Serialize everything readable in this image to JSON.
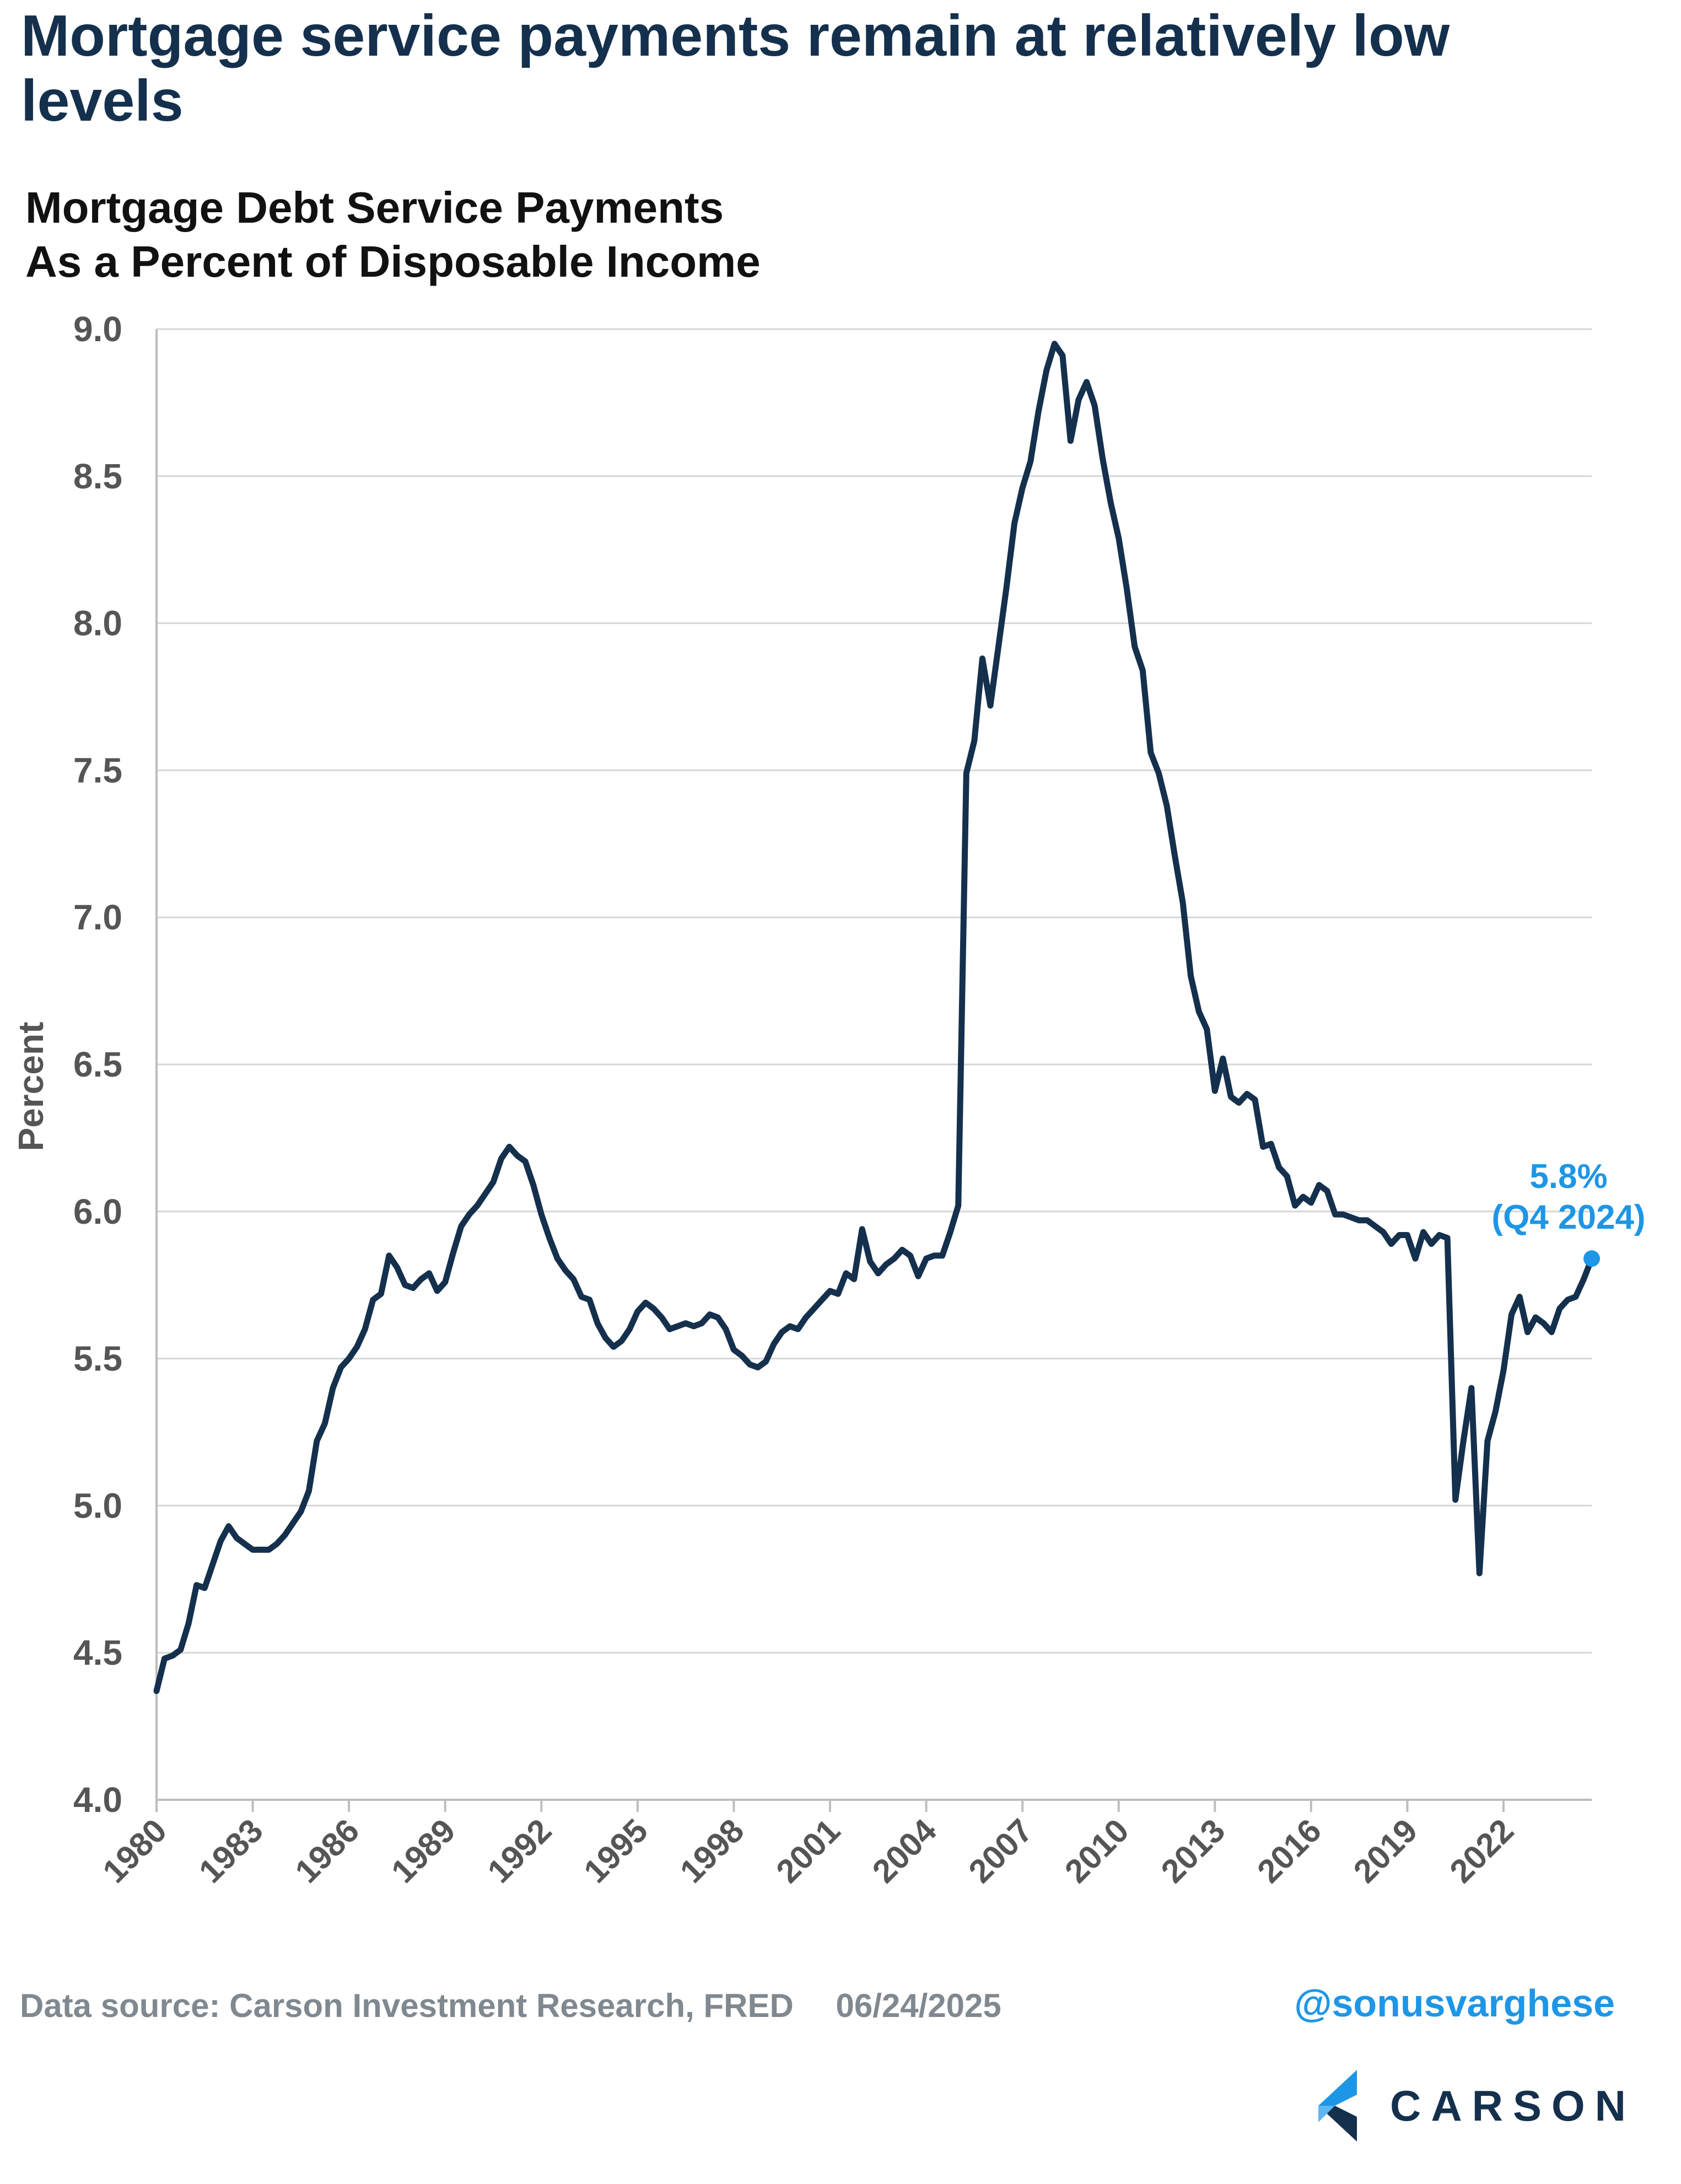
{
  "headline": "Mortgage service payments remain at relatively low levels",
  "chart_data": {
    "type": "line",
    "title_line1": "Mortgage Debt Service Payments",
    "title_line2": "As a Percent of Disposable Income",
    "ylabel": "Percent",
    "xlabel": "",
    "ylim": [
      4.0,
      9.0
    ],
    "xlim": [
      1980,
      2024.75
    ],
    "y_ticks": [
      "4.0",
      "4.5",
      "5.0",
      "5.5",
      "6.0",
      "6.5",
      "7.0",
      "7.5",
      "8.0",
      "8.5",
      "9.0"
    ],
    "x_ticks": [
      "1980",
      "1983",
      "1986",
      "1989",
      "1992",
      "1995",
      "1998",
      "2001",
      "2004",
      "2007",
      "2010",
      "2013",
      "2016",
      "2019",
      "2022"
    ],
    "grid": "horizontal",
    "line_color": "#14304d",
    "annotation": {
      "value_label": "5.8%",
      "period_label": "(Q4 2024)",
      "x": 2024.75,
      "y": 5.84,
      "color": "#1e96e6"
    },
    "series": [
      {
        "points": [
          [
            1980.0,
            4.37
          ],
          [
            1980.25,
            4.48
          ],
          [
            1980.5,
            4.49
          ],
          [
            1980.75,
            4.51
          ],
          [
            1981.0,
            4.6
          ],
          [
            1981.25,
            4.73
          ],
          [
            1981.5,
            4.72
          ],
          [
            1981.75,
            4.8
          ],
          [
            1982.0,
            4.88
          ],
          [
            1982.25,
            4.93
          ],
          [
            1982.5,
            4.89
          ],
          [
            1982.75,
            4.87
          ],
          [
            1983.0,
            4.85
          ],
          [
            1983.25,
            4.85
          ],
          [
            1983.5,
            4.85
          ],
          [
            1983.75,
            4.87
          ],
          [
            1984.0,
            4.9
          ],
          [
            1984.25,
            4.94
          ],
          [
            1984.5,
            4.98
          ],
          [
            1984.75,
            5.05
          ],
          [
            1985.0,
            5.22
          ],
          [
            1985.25,
            5.28
          ],
          [
            1985.5,
            5.4
          ],
          [
            1985.75,
            5.47
          ],
          [
            1986.0,
            5.5
          ],
          [
            1986.25,
            5.54
          ],
          [
            1986.5,
            5.6
          ],
          [
            1986.75,
            5.7
          ],
          [
            1987.0,
            5.72
          ],
          [
            1987.25,
            5.85
          ],
          [
            1987.5,
            5.81
          ],
          [
            1987.75,
            5.75
          ],
          [
            1988.0,
            5.74
          ],
          [
            1988.25,
            5.77
          ],
          [
            1988.5,
            5.79
          ],
          [
            1988.75,
            5.73
          ],
          [
            1989.0,
            5.76
          ],
          [
            1989.25,
            5.86
          ],
          [
            1989.5,
            5.95
          ],
          [
            1989.75,
            5.99
          ],
          [
            1990.0,
            6.02
          ],
          [
            1990.25,
            6.06
          ],
          [
            1990.5,
            6.1
          ],
          [
            1990.75,
            6.18
          ],
          [
            1991.0,
            6.22
          ],
          [
            1991.25,
            6.19
          ],
          [
            1991.5,
            6.17
          ],
          [
            1991.75,
            6.09
          ],
          [
            1992.0,
            5.99
          ],
          [
            1992.25,
            5.91
          ],
          [
            1992.5,
            5.84
          ],
          [
            1992.75,
            5.8
          ],
          [
            1993.0,
            5.77
          ],
          [
            1993.25,
            5.71
          ],
          [
            1993.5,
            5.7
          ],
          [
            1993.75,
            5.62
          ],
          [
            1994.0,
            5.57
          ],
          [
            1994.25,
            5.54
          ],
          [
            1994.5,
            5.56
          ],
          [
            1994.75,
            5.6
          ],
          [
            1995.0,
            5.66
          ],
          [
            1995.25,
            5.69
          ],
          [
            1995.5,
            5.67
          ],
          [
            1995.75,
            5.64
          ],
          [
            1996.0,
            5.6
          ],
          [
            1996.25,
            5.61
          ],
          [
            1996.5,
            5.62
          ],
          [
            1996.75,
            5.61
          ],
          [
            1997.0,
            5.62
          ],
          [
            1997.25,
            5.65
          ],
          [
            1997.5,
            5.64
          ],
          [
            1997.75,
            5.6
          ],
          [
            1998.0,
            5.53
          ],
          [
            1998.25,
            5.51
          ],
          [
            1998.5,
            5.48
          ],
          [
            1998.75,
            5.47
          ],
          [
            1999.0,
            5.49
          ],
          [
            1999.25,
            5.55
          ],
          [
            1999.5,
            5.59
          ],
          [
            1999.75,
            5.61
          ],
          [
            2000.0,
            5.6
          ],
          [
            2000.25,
            5.64
          ],
          [
            2000.5,
            5.67
          ],
          [
            2000.75,
            5.7
          ],
          [
            2001.0,
            5.73
          ],
          [
            2001.25,
            5.72
          ],
          [
            2001.5,
            5.79
          ],
          [
            2001.75,
            5.77
          ],
          [
            2002.0,
            5.94
          ],
          [
            2002.25,
            5.83
          ],
          [
            2002.5,
            5.79
          ],
          [
            2002.75,
            5.82
          ],
          [
            2003.0,
            5.84
          ],
          [
            2003.25,
            5.87
          ],
          [
            2003.5,
            5.85
          ],
          [
            2003.75,
            5.78
          ],
          [
            2004.0,
            5.84
          ],
          [
            2004.25,
            5.85
          ],
          [
            2004.5,
            5.85
          ],
          [
            2004.75,
            5.93
          ],
          [
            2005.0,
            6.02
          ],
          [
            2005.25,
            7.49
          ],
          [
            2005.5,
            7.6
          ],
          [
            2005.75,
            7.88
          ],
          [
            2006.0,
            7.72
          ],
          [
            2006.25,
            7.92
          ],
          [
            2006.5,
            8.12
          ],
          [
            2006.75,
            8.34
          ],
          [
            2007.0,
            8.46
          ],
          [
            2007.25,
            8.55
          ],
          [
            2007.5,
            8.72
          ],
          [
            2007.75,
            8.86
          ],
          [
            2008.0,
            8.95
          ],
          [
            2008.25,
            8.91
          ],
          [
            2008.5,
            8.62
          ],
          [
            2008.75,
            8.76
          ],
          [
            2009.0,
            8.82
          ],
          [
            2009.25,
            8.74
          ],
          [
            2009.5,
            8.56
          ],
          [
            2009.75,
            8.41
          ],
          [
            2010.0,
            8.29
          ],
          [
            2010.25,
            8.12
          ],
          [
            2010.5,
            7.92
          ],
          [
            2010.75,
            7.84
          ],
          [
            2011.0,
            7.56
          ],
          [
            2011.25,
            7.49
          ],
          [
            2011.5,
            7.38
          ],
          [
            2011.75,
            7.21
          ],
          [
            2012.0,
            7.05
          ],
          [
            2012.25,
            6.8
          ],
          [
            2012.5,
            6.68
          ],
          [
            2012.75,
            6.62
          ],
          [
            2013.0,
            6.41
          ],
          [
            2013.25,
            6.52
          ],
          [
            2013.5,
            6.39
          ],
          [
            2013.75,
            6.37
          ],
          [
            2014.0,
            6.4
          ],
          [
            2014.25,
            6.38
          ],
          [
            2014.5,
            6.22
          ],
          [
            2014.75,
            6.23
          ],
          [
            2015.0,
            6.15
          ],
          [
            2015.25,
            6.12
          ],
          [
            2015.5,
            6.02
          ],
          [
            2015.75,
            6.05
          ],
          [
            2016.0,
            6.03
          ],
          [
            2016.25,
            6.09
          ],
          [
            2016.5,
            6.07
          ],
          [
            2016.75,
            5.99
          ],
          [
            2017.0,
            5.99
          ],
          [
            2017.25,
            5.98
          ],
          [
            2017.5,
            5.97
          ],
          [
            2017.75,
            5.97
          ],
          [
            2018.0,
            5.95
          ],
          [
            2018.25,
            5.93
          ],
          [
            2018.5,
            5.89
          ],
          [
            2018.75,
            5.92
          ],
          [
            2019.0,
            5.92
          ],
          [
            2019.25,
            5.84
          ],
          [
            2019.5,
            5.93
          ],
          [
            2019.75,
            5.89
          ],
          [
            2020.0,
            5.92
          ],
          [
            2020.25,
            5.91
          ],
          [
            2020.5,
            5.02
          ],
          [
            2020.75,
            5.22
          ],
          [
            2021.0,
            5.4
          ],
          [
            2021.25,
            4.77
          ],
          [
            2021.5,
            5.22
          ],
          [
            2021.75,
            5.32
          ],
          [
            2022.0,
            5.46
          ],
          [
            2022.25,
            5.65
          ],
          [
            2022.5,
            5.71
          ],
          [
            2022.75,
            5.59
          ],
          [
            2023.0,
            5.64
          ],
          [
            2023.25,
            5.62
          ],
          [
            2023.5,
            5.59
          ],
          [
            2023.75,
            5.67
          ],
          [
            2024.0,
            5.7
          ],
          [
            2024.25,
            5.71
          ],
          [
            2024.5,
            5.77
          ],
          [
            2024.75,
            5.84
          ]
        ]
      }
    ]
  },
  "footer": {
    "source": "Data source: Carson Investment Research, FRED",
    "date": "06/24/2025",
    "handle": "@sonusvarghese",
    "logo_text": "CARSON"
  }
}
